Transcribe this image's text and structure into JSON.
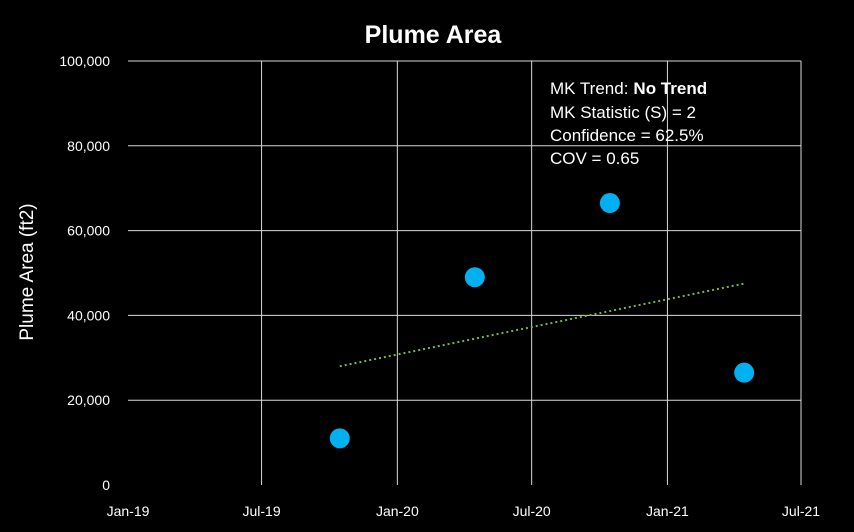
{
  "chart_data": {
    "type": "scatter",
    "title": "Plume Area",
    "xlabel": "",
    "ylabel": "Plume Area (ft2)",
    "x_tick_labels": [
      "Jan-19",
      "Jul-19",
      "Jan-20",
      "Jul-20",
      "Jan-21",
      "Jul-21"
    ],
    "x_ticks": [
      "2019-01-01",
      "2019-07-01",
      "2020-01-01",
      "2020-07-01",
      "2021-01-01",
      "2021-07-01"
    ],
    "xlim": [
      "2019-01-01",
      "2021-07-01"
    ],
    "y_tick_labels": [
      "0",
      "20,000",
      "40,000",
      "60,000",
      "80,000",
      "100,000"
    ],
    "y_ticks": [
      0,
      20000,
      40000,
      60000,
      80000,
      100000
    ],
    "ylim": [
      0,
      100000
    ],
    "grid": true,
    "background": "#000000",
    "points": [
      {
        "x": "2019-10-15",
        "y": 11000
      },
      {
        "x": "2020-04-15",
        "y": 49000
      },
      {
        "x": "2020-10-15",
        "y": 66500
      },
      {
        "x": "2021-04-15",
        "y": 26500
      }
    ],
    "trendline": {
      "style": "dotted",
      "color": "#7ab648",
      "start": {
        "x": "2019-10-15",
        "y": 28000
      },
      "end": {
        "x": "2021-04-15",
        "y": 47500
      }
    },
    "point_color": "#00b0f0",
    "annotation": {
      "trend_label": "MK Trend:",
      "trend_value": "No Trend",
      "statistic": "MK Statistic (S) = 2",
      "confidence": "Confidence = 62.5%",
      "cov": "COV = 0.65"
    }
  }
}
